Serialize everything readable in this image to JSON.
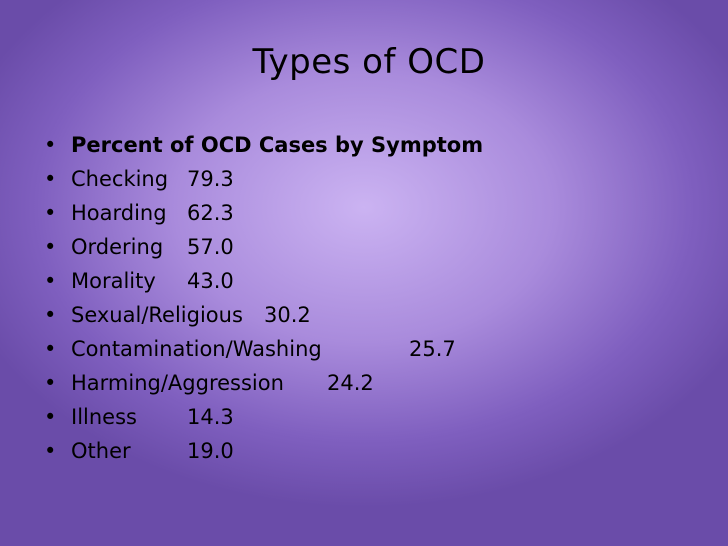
{
  "slide": {
    "title": "Types of OCD",
    "bullet_glyph": "•",
    "items": [
      {
        "label": "Percent of OCD Cases by Symptom",
        "value": ""
      },
      {
        "label": "Checking",
        "value": "79.3"
      },
      {
        "label": "Hoarding",
        "value": "62.3"
      },
      {
        "label": "Ordering",
        "value": "57.0"
      },
      {
        "label": "Morality",
        "value": "43.0"
      },
      {
        "label": "Sexual/Religious",
        "value": "30.2"
      },
      {
        "label": "Contamination/Washing",
        "value": "25.7"
      },
      {
        "label": "Harming/Aggression",
        "value": "24.2"
      },
      {
        "label": "Illness",
        "value": "14.3"
      },
      {
        "label": "Other",
        "value": "19.0"
      }
    ]
  }
}
